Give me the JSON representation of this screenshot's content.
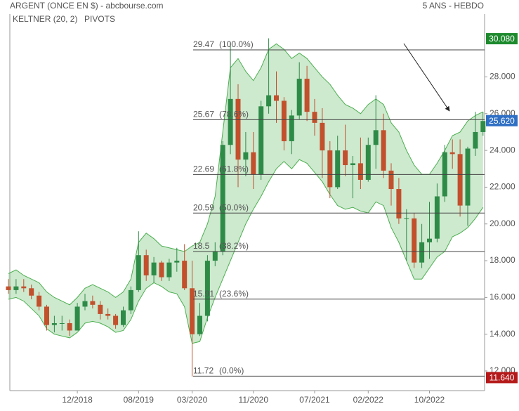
{
  "chart_data": {
    "type": "candlestick",
    "title": "ARGENT (ONCE EN $) - abcbourse.com",
    "subtitle": "5 ANS - HEBDO",
    "indicators": [
      {
        "name": "KELTNER (20, 2)",
        "color": "#4caf50"
      },
      {
        "name": "PIVOTS",
        "color": "#444444"
      }
    ],
    "up_color": "#2e8b47",
    "down_color": "#c2502d",
    "categories": [
      null,
      null,
      null,
      null,
      null,
      null,
      null,
      null,
      null,
      "12/2018",
      null,
      null,
      null,
      null,
      null,
      null,
      null,
      "08/2019",
      null,
      null,
      null,
      null,
      null,
      null,
      "03/2020",
      null,
      null,
      null,
      null,
      null,
      null,
      null,
      "11/2020",
      null,
      null,
      null,
      null,
      null,
      null,
      null,
      "07/2021",
      null,
      null,
      null,
      null,
      null,
      null,
      "02/2022",
      null,
      null,
      null,
      null,
      null,
      null,
      null,
      "10/2022",
      null,
      null,
      null,
      null,
      null,
      null,
      null
    ],
    "open": [
      16.6,
      16.4,
      16.6,
      16.5,
      16.1,
      15.5,
      14.5,
      14.6,
      14.6,
      14.2,
      15.5,
      15.8,
      15.6,
      15.1,
      15.0,
      14.5,
      15.3,
      16.4,
      18.3,
      17.2,
      17.9,
      17.1,
      17.9,
      18.0,
      16.5,
      14.0,
      15.0,
      18.0,
      18.5,
      24.3,
      26.8,
      23.5,
      23.9,
      22.7,
      26.4,
      27.0,
      26.7,
      24.5,
      25.9,
      27.9,
      26.1,
      25.5,
      24.0,
      22.0,
      24.0,
      23.2,
      23.3,
      22.4,
      24.3,
      25.1,
      22.9,
      21.9,
      20.3,
      20.3,
      17.9,
      19.0,
      19.2,
      21.5,
      23.9,
      23.8,
      21.0,
      24.1,
      25.0
    ],
    "high": [
      17.0,
      17.0,
      17.0,
      16.7,
      16.3,
      15.6,
      15.0,
      15.0,
      14.8,
      15.7,
      16.2,
      16.1,
      15.8,
      15.4,
      15.1,
      15.5,
      16.6,
      19.6,
      18.6,
      18.2,
      18.0,
      18.1,
      18.7,
      18.9,
      18.0,
      15.7,
      18.3,
      19.0,
      24.5,
      29.9,
      27.6,
      25.0,
      25.0,
      26.7,
      30.1,
      28.3,
      26.9,
      26.2,
      28.8,
      28.6,
      26.8,
      26.3,
      24.5,
      24.8,
      25.4,
      23.7,
      24.7,
      24.7,
      27.0,
      26.0,
      23.3,
      22.5,
      20.8,
      20.6,
      20.0,
      21.2,
      22.2,
      24.3,
      24.6,
      24.6,
      24.2,
      26.1,
      26.1
    ],
    "low": [
      16.2,
      16.2,
      16.3,
      15.9,
      15.3,
      14.2,
      14.1,
      14.2,
      13.9,
      14.2,
      15.3,
      15.4,
      14.8,
      14.8,
      14.3,
      14.4,
      15.1,
      16.3,
      16.9,
      16.8,
      16.9,
      16.9,
      17.4,
      16.4,
      11.7,
      13.9,
      14.7,
      17.7,
      18.3,
      23.8,
      22.0,
      22.6,
      21.9,
      22.4,
      26.0,
      25.5,
      24.0,
      23.8,
      25.7,
      25.6,
      24.8,
      22.5,
      21.4,
      21.9,
      22.6,
      21.4,
      21.9,
      22.3,
      23.0,
      22.5,
      21.0,
      20.0,
      18.0,
      17.6,
      17.6,
      18.1,
      19.0,
      21.2,
      23.0,
      20.4,
      19.9,
      23.7,
      24.8
    ],
    "close": [
      16.4,
      16.6,
      16.5,
      16.1,
      15.5,
      14.5,
      14.6,
      14.6,
      14.2,
      15.5,
      15.8,
      15.6,
      15.1,
      15.0,
      14.5,
      15.3,
      16.4,
      18.3,
      17.2,
      17.9,
      17.1,
      17.9,
      18.0,
      16.5,
      14.0,
      15.0,
      18.0,
      18.5,
      24.3,
      26.8,
      23.5,
      23.9,
      22.7,
      26.4,
      27.0,
      26.7,
      24.5,
      25.9,
      27.9,
      26.1,
      25.5,
      24.0,
      22.0,
      24.0,
      23.2,
      23.3,
      22.4,
      24.3,
      25.1,
      22.9,
      21.9,
      20.3,
      20.3,
      17.9,
      19.0,
      19.2,
      21.5,
      23.9,
      23.8,
      21.0,
      24.1,
      25.0,
      25.6
    ],
    "keltner": {
      "upper": [
        17.3,
        17.5,
        17.2,
        17.0,
        16.8,
        16.3,
        16.0,
        15.8,
        15.6,
        16.0,
        16.5,
        16.7,
        16.5,
        16.3,
        16.0,
        16.3,
        17.0,
        19.0,
        19.5,
        19.2,
        18.8,
        18.7,
        18.6,
        18.5,
        18.8,
        19.0,
        20.0,
        21.5,
        25.0,
        28.5,
        29.0,
        28.3,
        27.8,
        28.5,
        29.5,
        29.8,
        29.5,
        29.0,
        29.3,
        29.0,
        28.5,
        28.0,
        27.6,
        27.0,
        26.5,
        26.3,
        26.0,
        26.5,
        26.8,
        26.5,
        25.5,
        25.0,
        24.0,
        23.2,
        22.7,
        22.7,
        23.3,
        24.0,
        24.8,
        25.0,
        25.6,
        25.9,
        26.1
      ],
      "lower": [
        15.9,
        16.0,
        15.8,
        15.4,
        15.0,
        14.3,
        14.0,
        13.9,
        13.8,
        14.1,
        14.6,
        14.7,
        14.6,
        14.4,
        14.1,
        14.2,
        14.8,
        15.8,
        16.5,
        16.8,
        16.6,
        16.3,
        16.2,
        15.5,
        13.5,
        13.6,
        14.9,
        16.0,
        17.0,
        18.0,
        19.0,
        20.0,
        20.8,
        21.5,
        22.3,
        23.0,
        23.4,
        23.0,
        23.5,
        23.3,
        22.8,
        22.3,
        21.6,
        21.0,
        20.8,
        20.9,
        20.7,
        20.6,
        21.2,
        21.0,
        19.8,
        19.0,
        18.0,
        17.0,
        17.0,
        17.6,
        18.2,
        18.5,
        19.3,
        19.5,
        19.8,
        20.3,
        20.9
      ]
    },
    "pivots": [
      {
        "price": 29.47,
        "percent": "(100.0%)"
      },
      {
        "price": 25.67,
        "percent": "(78.6%)"
      },
      {
        "price": 22.69,
        "percent": "(61.8%)"
      },
      {
        "price": 20.59,
        "percent": "(50.0%)"
      },
      {
        "price": 18.5,
        "percent": "(38.2%)"
      },
      {
        "price": 15.91,
        "percent": "(23.6%)"
      },
      {
        "price": 11.72,
        "percent": "(0.0%)"
      }
    ],
    "price_tags": [
      {
        "value": 30.08,
        "label": "30.080",
        "color": "#1e8a2e"
      },
      {
        "value": 25.62,
        "label": "25.620",
        "color": "#2f6fc4"
      },
      {
        "value": 11.64,
        "label": "11.640",
        "color": "#b51a1a"
      }
    ],
    "ylim": [
      10.93,
      31.42
    ],
    "yticks": [
      {
        "value": 12,
        "label": "12.000"
      },
      {
        "value": 14,
        "label": "14.000"
      },
      {
        "value": 16,
        "label": "16.000"
      },
      {
        "value": 18,
        "label": "18.000"
      },
      {
        "value": 20,
        "label": "20.000"
      },
      {
        "value": 22,
        "label": "22.000"
      },
      {
        "value": 24,
        "label": "24.000"
      },
      {
        "value": 26,
        "label": "26.000"
      },
      {
        "value": 28,
        "label": "28.000"
      }
    ]
  }
}
